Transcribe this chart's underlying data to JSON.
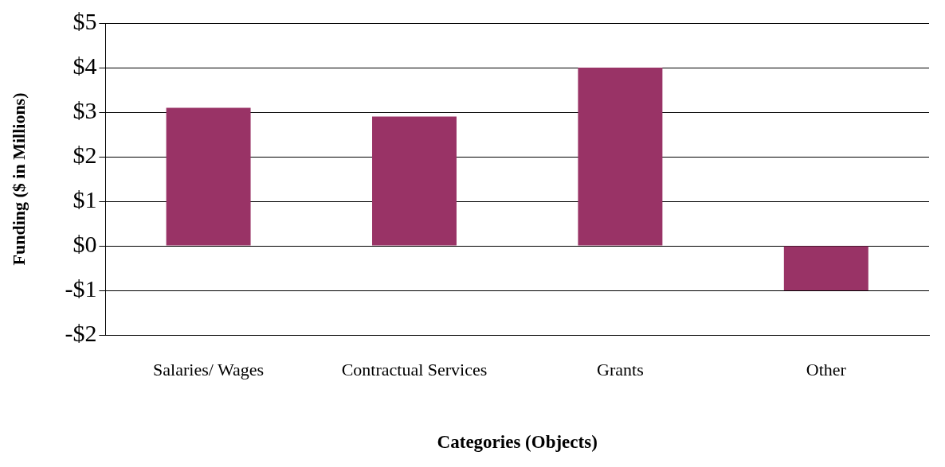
{
  "chart_data": {
    "type": "bar",
    "categories": [
      "Salaries/ Wages",
      "Contractual Services",
      "Grants",
      "Other"
    ],
    "values": [
      3.1,
      2.9,
      4.0,
      -1.0
    ],
    "color": "#993366",
    "xlabel": "Categories (Objects)",
    "ylabel": "Funding ($ in Millions)",
    "ylim": [
      -2,
      5
    ],
    "yticks": [
      {
        "value": -2,
        "label": "-$2"
      },
      {
        "value": -1,
        "label": "-$1"
      },
      {
        "value": 0,
        "label": "$0"
      },
      {
        "value": 1,
        "label": "$1"
      },
      {
        "value": 2,
        "label": "$2"
      },
      {
        "value": 3,
        "label": "$3"
      },
      {
        "value": 4,
        "label": "$4"
      },
      {
        "value": 5,
        "label": "$5"
      }
    ],
    "grid": "y",
    "legend": false
  }
}
